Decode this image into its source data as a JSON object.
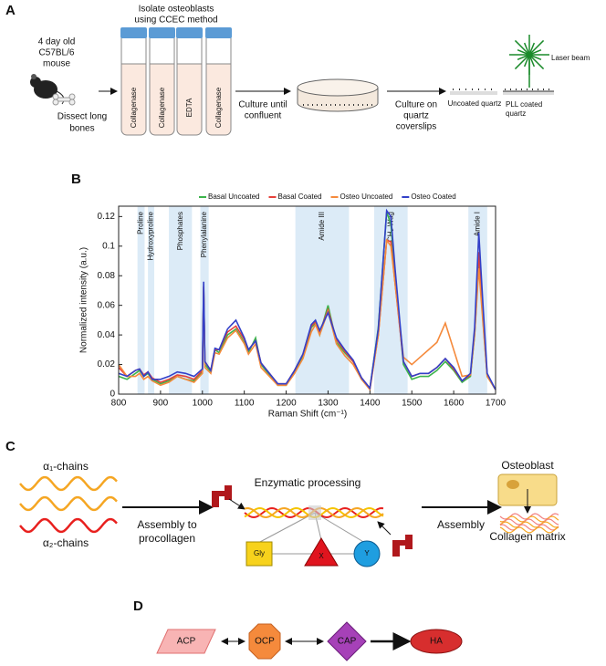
{
  "panel_a": {
    "label": "A",
    "mouse": [
      "4 day old",
      "C57BL/6",
      "mouse"
    ],
    "dissect": [
      "Dissect long",
      "bones"
    ],
    "isolate": [
      "Isolate osteoblasts",
      "using CCEC method"
    ],
    "tubes": [
      "Collagenase",
      "Collagenase",
      "EDTA",
      "Collagenase"
    ],
    "culture": [
      "Culture until",
      "confluent"
    ],
    "coverslips": [
      "Culture on",
      "quartz",
      "coverslips"
    ],
    "laser": "Laser beam",
    "uncoated": "Uncoated quartz",
    "pll": [
      "PLL coated",
      "quartz"
    ]
  },
  "chart_data": {
    "type": "line",
    "label": "B",
    "xlabel": "Raman Shift (cm⁻¹)",
    "ylabel": "Normalized intensity (a.u.)",
    "x": [
      800,
      820,
      840,
      850,
      860,
      870,
      880,
      900,
      920,
      940,
      960,
      980,
      1000,
      1003,
      1006,
      1020,
      1030,
      1040,
      1060,
      1080,
      1100,
      1110,
      1127,
      1140,
      1160,
      1180,
      1200,
      1220,
      1240,
      1260,
      1270,
      1280,
      1300,
      1320,
      1340,
      1360,
      1380,
      1400,
      1420,
      1440,
      1450,
      1460,
      1480,
      1500,
      1520,
      1540,
      1560,
      1580,
      1600,
      1620,
      1640,
      1650,
      1660,
      1670,
      1680,
      1700
    ],
    "series": [
      {
        "name": "Basal Uncoated",
        "color": "#3cb44b",
        "values": [
          0.012,
          0.01,
          0.014,
          0.016,
          0.012,
          0.014,
          0.01,
          0.007,
          0.009,
          0.012,
          0.01,
          0.009,
          0.015,
          0.072,
          0.02,
          0.015,
          0.03,
          0.028,
          0.04,
          0.044,
          0.035,
          0.028,
          0.038,
          0.02,
          0.013,
          0.006,
          0.006,
          0.015,
          0.025,
          0.045,
          0.048,
          0.04,
          0.06,
          0.035,
          0.028,
          0.022,
          0.01,
          0.004,
          0.045,
          0.123,
          0.115,
          0.08,
          0.02,
          0.01,
          0.012,
          0.012,
          0.016,
          0.022,
          0.016,
          0.008,
          0.012,
          0.04,
          0.09,
          0.05,
          0.012,
          0.003
        ]
      },
      {
        "name": "Basal Coated",
        "color": "#e6403a",
        "values": [
          0.018,
          0.012,
          0.016,
          0.017,
          0.013,
          0.015,
          0.011,
          0.008,
          0.01,
          0.013,
          0.012,
          0.01,
          0.016,
          0.073,
          0.022,
          0.016,
          0.03,
          0.03,
          0.042,
          0.046,
          0.037,
          0.03,
          0.036,
          0.021,
          0.014,
          0.007,
          0.007,
          0.016,
          0.027,
          0.046,
          0.049,
          0.042,
          0.057,
          0.037,
          0.029,
          0.022,
          0.011,
          0.004,
          0.04,
          0.104,
          0.103,
          0.075,
          0.022,
          0.012,
          0.014,
          0.014,
          0.018,
          0.024,
          0.017,
          0.009,
          0.013,
          0.042,
          0.096,
          0.052,
          0.013,
          0.003
        ]
      },
      {
        "name": "Osteo Uncoated",
        "color": "#f58a3c",
        "values": [
          0.02,
          0.012,
          0.012,
          0.014,
          0.01,
          0.012,
          0.009,
          0.006,
          0.008,
          0.012,
          0.01,
          0.008,
          0.014,
          0.07,
          0.018,
          0.014,
          0.028,
          0.027,
          0.038,
          0.043,
          0.034,
          0.027,
          0.034,
          0.018,
          0.012,
          0.006,
          0.006,
          0.014,
          0.024,
          0.042,
          0.047,
          0.04,
          0.056,
          0.034,
          0.026,
          0.02,
          0.01,
          0.003,
          0.04,
          0.104,
          0.1,
          0.075,
          0.025,
          0.02,
          0.025,
          0.03,
          0.035,
          0.048,
          0.03,
          0.012,
          0.013,
          0.04,
          0.085,
          0.048,
          0.012,
          0.003
        ]
      },
      {
        "name": "Osteo Coated",
        "color": "#3340c8",
        "values": [
          0.014,
          0.012,
          0.016,
          0.017,
          0.012,
          0.015,
          0.01,
          0.01,
          0.012,
          0.015,
          0.014,
          0.012,
          0.017,
          0.076,
          0.022,
          0.016,
          0.031,
          0.03,
          0.044,
          0.05,
          0.038,
          0.03,
          0.036,
          0.021,
          0.014,
          0.007,
          0.007,
          0.016,
          0.027,
          0.047,
          0.05,
          0.043,
          0.055,
          0.038,
          0.03,
          0.023,
          0.011,
          0.004,
          0.044,
          0.124,
          0.12,
          0.085,
          0.022,
          0.012,
          0.014,
          0.014,
          0.018,
          0.024,
          0.018,
          0.009,
          0.014,
          0.045,
          0.109,
          0.06,
          0.014,
          0.003
        ]
      }
    ],
    "regions": [
      {
        "label": "Proline",
        "range": [
          845,
          862
        ]
      },
      {
        "label": "Hydroxyproline",
        "range": [
          870,
          885
        ]
      },
      {
        "label": "Phosphates",
        "range": [
          920,
          975
        ]
      },
      {
        "label": "Phenylalanine",
        "range": [
          995,
          1015
        ]
      },
      {
        "label": "Amide III",
        "range": [
          1222,
          1350
        ]
      },
      {
        "label": "CH₂ Wag",
        "range": [
          1410,
          1490
        ]
      },
      {
        "label": "Amide I",
        "range": [
          1635,
          1680
        ]
      }
    ],
    "region_color": "#dcebf7",
    "xlim": [
      800,
      1700
    ],
    "xticks": [
      800,
      900,
      1000,
      1100,
      1200,
      1300,
      1400,
      1500,
      1600,
      1700
    ],
    "ylim": [
      0,
      0.127
    ],
    "yticks": [
      0,
      0.02,
      0.04,
      0.06,
      0.08,
      0.1,
      0.12
    ],
    "legend": "top"
  },
  "panel_c": {
    "label": "C",
    "alpha1": "α₁-chains",
    "alpha2": "α₂-chains",
    "assembly_to": [
      "Assembly to",
      "procollagen"
    ],
    "enzymatic": "Enzymatic processing",
    "gly": "Gly",
    "x": "X",
    "y": "Y",
    "assembly": "Assembly",
    "osteoblast": "Osteoblast",
    "matrix": "Collagen matrix"
  },
  "panel_d": {
    "label": "D",
    "nodes": [
      "ACP",
      "OCP",
      "CAP",
      "HA"
    ]
  }
}
